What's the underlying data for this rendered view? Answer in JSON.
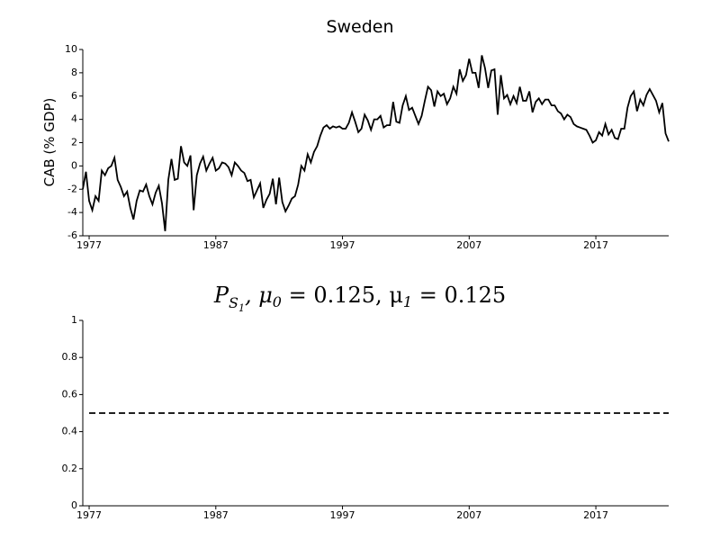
{
  "chart_data": [
    {
      "type": "line",
      "title": "Sweden",
      "ylabel": "CAB (% GDP)",
      "x": [
        1976.5,
        1976.75,
        1977,
        1977.25,
        1977.5,
        1977.75,
        1978,
        1978.25,
        1978.5,
        1978.75,
        1979,
        1979.25,
        1979.5,
        1979.75,
        1980,
        1980.25,
        1980.5,
        1980.75,
        1981,
        1981.25,
        1981.5,
        1981.75,
        1982,
        1982.25,
        1982.5,
        1982.75,
        1983,
        1983.25,
        1983.5,
        1983.75,
        1984,
        1984.25,
        1984.5,
        1984.75,
        1985,
        1985.25,
        1985.5,
        1985.75,
        1986,
        1986.25,
        1986.5,
        1986.75,
        1987,
        1987.25,
        1987.5,
        1987.75,
        1988,
        1988.25,
        1988.5,
        1988.75,
        1989,
        1989.25,
        1989.5,
        1989.75,
        1990,
        1990.25,
        1990.5,
        1990.75,
        1991,
        1991.25,
        1991.5,
        1991.75,
        1992,
        1992.25,
        1992.5,
        1992.75,
        1993,
        1993.25,
        1993.5,
        1993.75,
        1994,
        1994.25,
        1994.5,
        1994.75,
        1995,
        1995.25,
        1995.5,
        1995.75,
        1996,
        1996.25,
        1996.5,
        1996.75,
        1997,
        1997.25,
        1997.5,
        1997.75,
        1998,
        1998.25,
        1998.5,
        1998.75,
        1999,
        1999.25,
        1999.5,
        1999.75,
        2000,
        2000.25,
        2000.5,
        2000.75,
        2001,
        2001.25,
        2001.5,
        2001.75,
        2002,
        2002.25,
        2002.5,
        2002.75,
        2003,
        2003.25,
        2003.5,
        2003.75,
        2004,
        2004.25,
        2004.5,
        2004.75,
        2005,
        2005.25,
        2005.5,
        2005.75,
        2006,
        2006.25,
        2006.5,
        2006.75,
        2007,
        2007.25,
        2007.5,
        2007.75,
        2008,
        2008.25,
        2008.5,
        2008.75,
        2009,
        2009.25,
        2009.5,
        2009.75,
        2010,
        2010.25,
        2010.5,
        2010.75,
        2011,
        2011.25,
        2011.5,
        2011.75,
        2012,
        2012.25,
        2012.5,
        2012.75,
        2013,
        2013.25,
        2013.5,
        2013.75,
        2014,
        2014.25,
        2014.5,
        2014.75,
        2015,
        2015.25,
        2015.5,
        2015.75,
        2016,
        2016.25,
        2016.5,
        2016.75,
        2017,
        2017.25,
        2017.5,
        2017.75,
        2018,
        2018.25,
        2018.5,
        2018.75,
        2019,
        2019.25,
        2019.5,
        2019.75,
        2020,
        2020.25,
        2020.5,
        2020.75,
        2021,
        2021.25,
        2021.5,
        2021.75,
        2022,
        2022.25,
        2022.5,
        2022.75
      ],
      "values": [
        -2,
        -0.5,
        -3,
        -3.8,
        -2.6,
        -3,
        -0.4,
        -0.8,
        -0.2,
        0,
        0.7,
        -1.2,
        -1.8,
        -2.6,
        -2.2,
        -3.6,
        -4.6,
        -3,
        -2.1,
        -2.2,
        -1.6,
        -2.6,
        -3.3,
        -2.3,
        -1.7,
        -3.2,
        -5.6,
        -1.2,
        0.6,
        -1.2,
        -1.1,
        1.7,
        0.3,
        0,
        0.9,
        -3.8,
        -0.8,
        0.2,
        0.8,
        -0.4,
        0.2,
        0.7,
        -0.4,
        -0.2,
        0.3,
        0.2,
        -0.1,
        -0.8,
        0.3,
        0,
        -0.4,
        -0.6,
        -1.3,
        -1.2,
        -2.7,
        -2.1,
        -1.5,
        -3.6,
        -2.9,
        -2.4,
        -1.1,
        -3.3,
        -1,
        -3.1,
        -3.9,
        -3.4,
        -2.8,
        -2.6,
        -1.6,
        0,
        -0.4,
        1,
        0.3,
        1.2,
        1.7,
        2.6,
        3.3,
        3.5,
        3.2,
        3.4,
        3.3,
        3.4,
        3.2,
        3.2,
        3.7,
        4.6,
        3.8,
        2.9,
        3.2,
        4.4,
        3.9,
        3.1,
        4,
        4,
        4.3,
        3.3,
        3.5,
        3.5,
        5.5,
        3.8,
        3.7,
        5.2,
        6,
        4.8,
        5,
        4.3,
        3.6,
        4.3,
        5.6,
        6.8,
        6.5,
        5.1,
        6.4,
        6,
        6.2,
        5.3,
        5.8,
        6.8,
        6.2,
        8.3,
        7.3,
        7.8,
        9.2,
        8,
        8,
        6.7,
        9.5,
        8.4,
        6.7,
        8.2,
        8.3,
        4.4,
        7.8,
        5.8,
        6.1,
        5.3,
        6,
        5.4,
        6.8,
        5.6,
        5.6,
        6.4,
        4.6,
        5.5,
        5.8,
        5.3,
        5.7,
        5.7,
        5.2,
        5.2,
        4.7,
        4.5,
        4,
        4.4,
        4.2,
        3.6,
        3.4,
        3.3,
        3.2,
        3.1,
        2.6,
        2,
        2.2,
        2.9,
        2.6,
        3.6,
        2.7,
        3.1,
        2.4,
        2.3,
        3.2,
        3.2,
        5,
        6,
        6.4,
        4.7,
        5.7,
        5.2,
        6.1,
        6.6,
        6.1,
        5.6,
        4.6,
        5.4,
        2.8,
        2.1
      ],
      "color": "#000000",
      "linestyle": "solid",
      "xlim": [
        1976.5,
        2022.75
      ],
      "xticks": [
        1977,
        1987,
        1997,
        2007,
        2017
      ],
      "ylim": [
        -6,
        10
      ],
      "yticks": [
        -6,
        -4,
        -2,
        0,
        2,
        4,
        6,
        8,
        10
      ]
    },
    {
      "type": "line",
      "title": [
        "P",
        "S",
        "1",
        ", μ",
        "0",
        " = 0.125, μ",
        "1",
        " = 0.125"
      ],
      "x": [
        1977,
        2022.75
      ],
      "values": [
        0.5,
        0.5
      ],
      "color": "#000000",
      "linestyle": "dashed",
      "xlim": [
        1976.5,
        2022.75
      ],
      "xticks": [
        1977,
        1987,
        1997,
        2007,
        2017
      ],
      "ylim": [
        0,
        1
      ],
      "yticks": [
        0,
        0.2,
        0.4,
        0.6,
        0.8,
        1
      ]
    }
  ]
}
